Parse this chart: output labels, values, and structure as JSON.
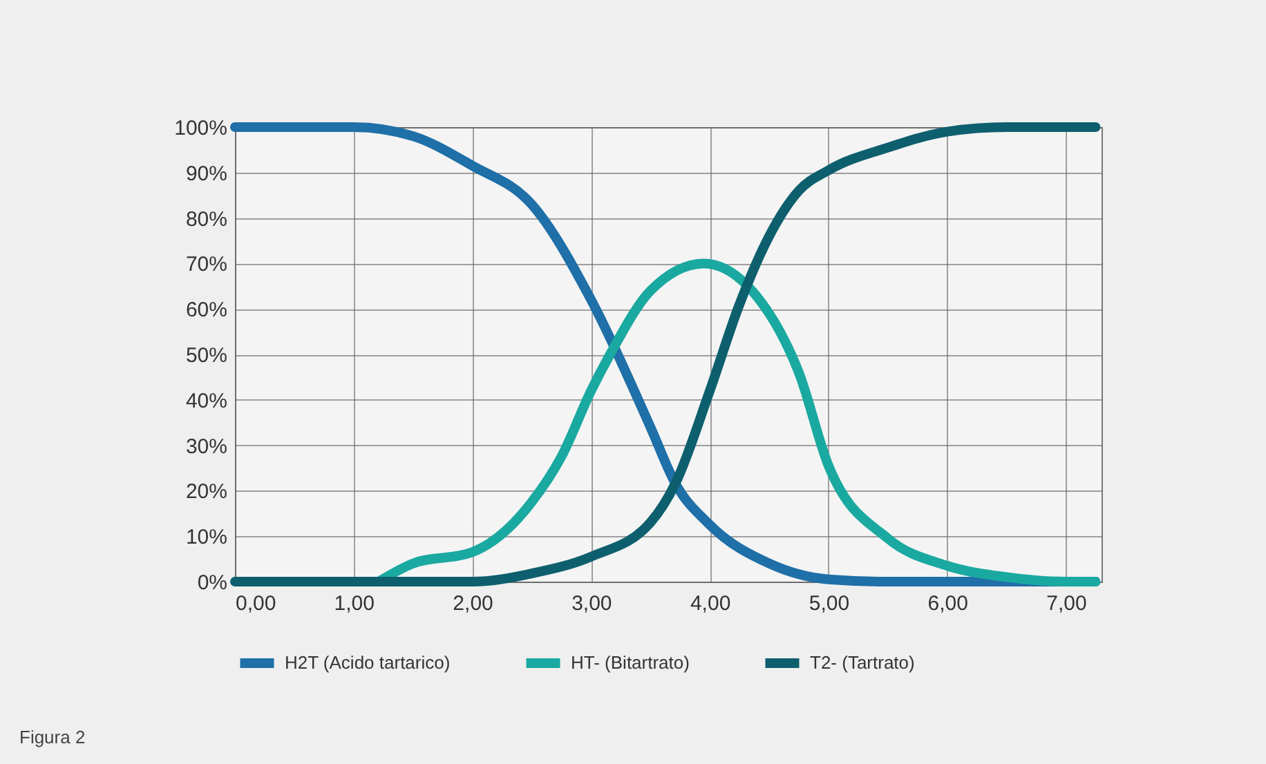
{
  "chart_data": {
    "type": "line",
    "xlim": [
      0,
      7.3
    ],
    "ylim": [
      0,
      100
    ],
    "xticks": [
      {
        "value": 0,
        "label": "0,00"
      },
      {
        "value": 1,
        "label": "1,00"
      },
      {
        "value": 2,
        "label": "2,00"
      },
      {
        "value": 3,
        "label": "3,00"
      },
      {
        "value": 4,
        "label": "4,00"
      },
      {
        "value": 5,
        "label": "5,00"
      },
      {
        "value": 6,
        "label": "6,00"
      },
      {
        "value": 7,
        "label": "7,00"
      }
    ],
    "yticks": [
      {
        "value": 0,
        "label": "0%"
      },
      {
        "value": 10,
        "label": "10%"
      },
      {
        "value": 20,
        "label": "20%"
      },
      {
        "value": 30,
        "label": "30%"
      },
      {
        "value": 40,
        "label": "40%"
      },
      {
        "value": 50,
        "label": "50%"
      },
      {
        "value": 60,
        "label": "60%"
      },
      {
        "value": 70,
        "label": "70%"
      },
      {
        "value": 80,
        "label": "80%"
      },
      {
        "value": 90,
        "label": "90%"
      },
      {
        "value": 100,
        "label": "100%"
      }
    ],
    "grid": true,
    "legend": "bottom",
    "marker": "none",
    "line_style": "solid",
    "annotations": [
      "Figura 2"
    ],
    "series": [
      {
        "name": "H2T (Acido tartarico)",
        "color": "#1f6fa8",
        "x": [
          0,
          0.5,
          1,
          1.5,
          2,
          2.5,
          3,
          3.5,
          3.71,
          4,
          4.5,
          5,
          5.5,
          6,
          6.5,
          7,
          7.25
        ],
        "values": [
          100,
          100,
          100,
          98,
          91.5,
          83,
          62,
          34,
          21.6,
          12.5,
          4,
          0.5,
          0,
          0,
          0,
          0,
          0
        ]
      },
      {
        "name": "HT- (Bitartrato)",
        "color": "#1aa9a0",
        "x": [
          1.21,
          1.5,
          2,
          2.5,
          2.75,
          3,
          3.16,
          3.5,
          3.95,
          4.5,
          4.75,
          5,
          5.5,
          6,
          6.5,
          7,
          7.25
        ],
        "values": [
          0,
          4,
          6.5,
          17.5,
          27.5,
          42,
          50,
          64,
          70,
          59,
          46,
          25.5,
          9.5,
          3.5,
          1,
          0,
          0
        ]
      },
      {
        "name": "T2- (Tartrato)",
        "color": "#0e5f6e",
        "x": [
          0,
          0.5,
          1,
          1.5,
          2,
          2.5,
          3,
          3.5,
          3.71,
          4,
          4.25,
          4.5,
          4.75,
          5,
          5.5,
          6,
          6.5,
          7,
          7.25
        ],
        "values": [
          0,
          0,
          0,
          0,
          0,
          1.8,
          5.5,
          13,
          21.6,
          42,
          61,
          76,
          86,
          90.5,
          95.5,
          99,
          100,
          100,
          100
        ]
      }
    ]
  }
}
